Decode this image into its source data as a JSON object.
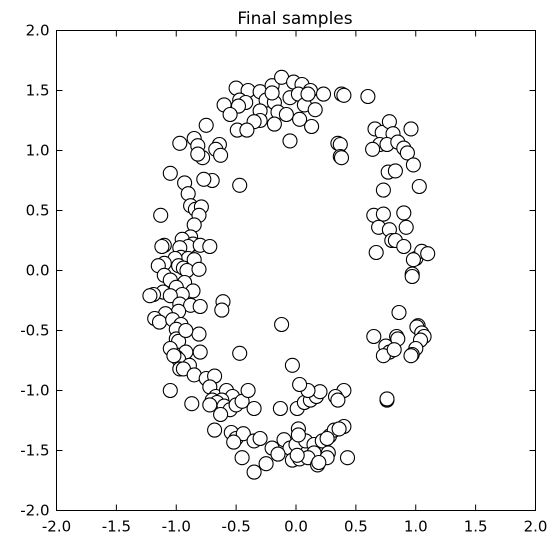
{
  "chart_data": {
    "type": "scatter",
    "title": "Final samples",
    "xlabel": "",
    "ylabel": "",
    "xlim": [
      -2.0,
      2.0
    ],
    "ylim": [
      -2.0,
      2.0
    ],
    "xticks": [
      "-2.0",
      "-1.5",
      "-1.0",
      "-0.5",
      "0.0",
      "0.5",
      "1.0",
      "1.5",
      "2.0"
    ],
    "yticks": [
      "2.0",
      "1.5",
      "1.0",
      "0.5",
      "0.0",
      "-0.5",
      "-1.0",
      "-1.5",
      "-2.0"
    ],
    "grid": false,
    "marker": {
      "fill": "#ffffff",
      "edge": "#000000"
    },
    "points": [
      [
        -0.5,
        1.52
      ],
      [
        -0.4,
        1.5
      ],
      [
        -0.3,
        1.49
      ],
      [
        -0.2,
        1.54
      ],
      [
        -0.12,
        1.61
      ],
      [
        -0.02,
        1.57
      ],
      [
        0.05,
        1.55
      ],
      [
        0.12,
        1.5
      ],
      [
        0.23,
        1.47
      ],
      [
        0.38,
        1.47
      ],
      [
        -0.6,
        1.38
      ],
      [
        -0.47,
        1.42
      ],
      [
        -0.42,
        1.4
      ],
      [
        -0.25,
        1.42
      ],
      [
        -0.18,
        1.4
      ],
      [
        -0.05,
        1.44
      ],
      [
        0.02,
        1.47
      ],
      [
        -0.48,
        1.37
      ],
      [
        -0.3,
        1.33
      ],
      [
        -0.15,
        1.32
      ],
      [
        -0.08,
        1.3
      ],
      [
        0.07,
        1.38
      ],
      [
        0.16,
        1.34
      ],
      [
        0.03,
        1.26
      ],
      [
        -0.3,
        1.25
      ],
      [
        -0.35,
        1.24
      ],
      [
        -0.49,
        1.17
      ],
      [
        -0.41,
        1.17
      ],
      [
        -0.75,
        1.21
      ],
      [
        -0.18,
        1.22
      ],
      [
        0.13,
        1.2
      ],
      [
        -0.05,
        1.08
      ],
      [
        -0.97,
        1.06
      ],
      [
        -0.85,
        1.1
      ],
      [
        -0.82,
        1.04
      ],
      [
        -0.64,
        1.05
      ],
      [
        -0.67,
        1.01
      ],
      [
        -0.63,
        0.96
      ],
      [
        -0.78,
        0.94
      ],
      [
        -0.82,
        0.97
      ],
      [
        0.35,
        1.06
      ],
      [
        0.37,
        1.05
      ],
      [
        0.37,
        0.95
      ],
      [
        0.38,
        0.94
      ],
      [
        -1.05,
        0.81
      ],
      [
        -0.93,
        0.73
      ],
      [
        -0.7,
        0.75
      ],
      [
        -0.77,
        0.76
      ],
      [
        -0.47,
        0.71
      ],
      [
        -0.9,
        0.64
      ],
      [
        -0.88,
        0.54
      ],
      [
        -0.84,
        0.51
      ],
      [
        -0.79,
        0.53
      ],
      [
        -0.81,
        0.46
      ],
      [
        -1.13,
        0.46
      ],
      [
        -0.85,
        0.38
      ],
      [
        -0.88,
        0.28
      ],
      [
        -0.95,
        0.26
      ],
      [
        -0.86,
        0.22
      ],
      [
        -0.9,
        0.2
      ],
      [
        -0.97,
        0.19
      ],
      [
        -0.8,
        0.21
      ],
      [
        -1.1,
        0.21
      ],
      [
        -1.12,
        0.2
      ],
      [
        -0.72,
        0.2
      ],
      [
        -0.96,
        0.11
      ],
      [
        -0.9,
        0.1
      ],
      [
        -1.01,
        0.1
      ],
      [
        -0.85,
        0.09
      ],
      [
        -1.1,
        0.06
      ],
      [
        -1.15,
        0.04
      ],
      [
        -0.98,
        0.04
      ],
      [
        -0.94,
        0.02
      ],
      [
        -0.91,
        0.0
      ],
      [
        -0.81,
        0.01
      ],
      [
        -1.1,
        -0.04
      ],
      [
        -1.05,
        -0.08
      ],
      [
        -0.93,
        -0.1
      ],
      [
        -1.0,
        -0.14
      ],
      [
        -1.11,
        -0.18
      ],
      [
        -0.86,
        -0.17
      ],
      [
        -0.95,
        -0.2
      ],
      [
        -1.19,
        -0.2
      ],
      [
        -1.22,
        -0.21
      ],
      [
        -1.05,
        -0.21
      ],
      [
        -0.97,
        -0.28
      ],
      [
        -0.88,
        -0.29
      ],
      [
        -0.8,
        -0.3
      ],
      [
        -0.61,
        -0.26
      ],
      [
        -0.62,
        -0.33
      ],
      [
        -0.98,
        -0.34
      ],
      [
        -1.09,
        -0.36
      ],
      [
        -1.18,
        -0.4
      ],
      [
        -1.14,
        -0.43
      ],
      [
        -1.03,
        -0.41
      ],
      [
        -0.96,
        -0.45
      ],
      [
        -1.0,
        -0.49
      ],
      [
        -0.81,
        -0.53
      ],
      [
        -1.0,
        -0.57
      ],
      [
        -0.98,
        -0.59
      ],
      [
        -1.05,
        -0.65
      ],
      [
        -0.92,
        -0.68
      ],
      [
        -0.8,
        -0.68
      ],
      [
        -0.47,
        -0.69
      ],
      [
        -1.0,
        -0.72
      ],
      [
        -0.98,
        -0.74
      ],
      [
        -1.02,
        -0.71
      ],
      [
        -0.89,
        -0.79
      ],
      [
        -0.97,
        -0.82
      ],
      [
        -0.94,
        -0.82
      ],
      [
        -0.85,
        -0.87
      ],
      [
        -0.75,
        -0.9
      ],
      [
        -0.68,
        -0.88
      ],
      [
        -0.72,
        -0.97
      ],
      [
        -1.05,
        -1.0
      ],
      [
        -0.67,
        -1.05
      ],
      [
        -0.7,
        -1.08
      ],
      [
        -0.58,
        -1.0
      ],
      [
        -0.53,
        -1.05
      ],
      [
        -0.62,
        -1.08
      ],
      [
        -0.66,
        -1.1
      ],
      [
        -0.72,
        -1.12
      ],
      [
        -0.6,
        -1.13
      ],
      [
        -0.55,
        -1.16
      ],
      [
        -0.5,
        -1.12
      ],
      [
        -0.45,
        -1.09
      ],
      [
        -0.4,
        -1.0
      ],
      [
        -0.35,
        -1.15
      ],
      [
        -0.87,
        -1.11
      ],
      [
        -0.63,
        -1.2
      ],
      [
        -0.68,
        -1.33
      ],
      [
        -0.54,
        -1.35
      ],
      [
        -0.5,
        -1.4
      ],
      [
        -0.44,
        -1.36
      ],
      [
        -0.35,
        -1.42
      ],
      [
        -0.3,
        -1.4
      ],
      [
        -0.2,
        -1.48
      ],
      [
        -0.1,
        -1.41
      ],
      [
        -0.05,
        -1.48
      ],
      [
        0.0,
        -1.45
      ],
      [
        0.08,
        -1.42
      ],
      [
        0.15,
        -1.45
      ],
      [
        0.22,
        -1.42
      ],
      [
        0.28,
        -1.38
      ],
      [
        0.32,
        -1.33
      ],
      [
        0.4,
        -1.3
      ],
      [
        0.36,
        -1.32
      ],
      [
        -0.13,
        -1.15
      ],
      [
        0.01,
        -1.15
      ],
      [
        0.07,
        -1.1
      ],
      [
        0.12,
        -1.08
      ],
      [
        0.17,
        -1.05
      ],
      [
        0.2,
        -1.01
      ],
      [
        0.1,
        -1.0
      ],
      [
        0.03,
        -0.95
      ],
      [
        0.4,
        -1.0
      ],
      [
        -0.03,
        -0.79
      ],
      [
        0.02,
        -1.32
      ],
      [
        0.15,
        -1.52
      ],
      [
        0.27,
        -1.52
      ],
      [
        0.43,
        -1.56
      ],
      [
        -0.03,
        -1.58
      ],
      [
        0.03,
        -1.57
      ],
      [
        0.1,
        -1.56
      ],
      [
        0.18,
        -1.62
      ],
      [
        -0.45,
        -1.56
      ],
      [
        -0.25,
        -1.61
      ],
      [
        -0.35,
        -1.68
      ],
      [
        -0.15,
        -1.53
      ],
      [
        0.26,
        -1.56
      ],
      [
        0.02,
        -1.37
      ],
      [
        0.33,
        -1.05
      ],
      [
        0.19,
        -1.6
      ],
      [
        0.6,
        1.45
      ],
      [
        0.66,
        1.18
      ],
      [
        0.72,
        1.15
      ],
      [
        0.78,
        1.24
      ],
      [
        0.81,
        1.14
      ],
      [
        0.7,
        1.05
      ],
      [
        0.76,
        1.05
      ],
      [
        0.64,
        1.01
      ],
      [
        0.85,
        1.07
      ],
      [
        0.9,
        1.02
      ],
      [
        0.93,
        0.98
      ],
      [
        0.96,
        1.18
      ],
      [
        0.98,
        0.88
      ],
      [
        0.77,
        0.82
      ],
      [
        0.83,
        0.83
      ],
      [
        1.03,
        0.7
      ],
      [
        0.73,
        0.67
      ],
      [
        0.65,
        0.46
      ],
      [
        0.73,
        0.47
      ],
      [
        0.69,
        0.36
      ],
      [
        0.78,
        0.34
      ],
      [
        0.9,
        0.48
      ],
      [
        0.92,
        0.36
      ],
      [
        0.8,
        0.25
      ],
      [
        0.83,
        0.25
      ],
      [
        0.67,
        0.15
      ],
      [
        0.9,
        0.2
      ],
      [
        1.0,
        0.1
      ],
      [
        1.05,
        0.16
      ],
      [
        1.1,
        0.14
      ],
      [
        0.98,
        0.09
      ],
      [
        0.97,
        -0.03
      ],
      [
        0.97,
        -0.05
      ],
      [
        0.86,
        -0.35
      ],
      [
        0.65,
        -0.55
      ],
      [
        0.84,
        -0.55
      ],
      [
        0.85,
        -0.57
      ],
      [
        1.02,
        -0.46
      ],
      [
        1.01,
        -0.47
      ],
      [
        1.05,
        -0.52
      ],
      [
        1.07,
        -0.55
      ],
      [
        1.04,
        -0.58
      ],
      [
        1.0,
        -0.65
      ],
      [
        0.75,
        -0.63
      ],
      [
        0.78,
        -0.68
      ],
      [
        0.73,
        -0.71
      ],
      [
        0.82,
        -0.66
      ],
      [
        0.97,
        -0.7
      ],
      [
        0.96,
        -0.71
      ],
      [
        0.76,
        -1.08
      ],
      [
        0.76,
        -1.07
      ],
      [
        0.26,
        -1.4
      ],
      [
        -0.12,
        -0.45
      ],
      [
        0.01,
        -1.54
      ],
      [
        -0.52,
        -1.43
      ],
      [
        0.35,
        -1.08
      ],
      [
        0.4,
        1.46
      ],
      [
        -0.2,
        1.48
      ],
      [
        0.1,
        1.47
      ],
      [
        -0.92,
        -0.5
      ],
      [
        -0.55,
        1.3
      ]
    ]
  }
}
